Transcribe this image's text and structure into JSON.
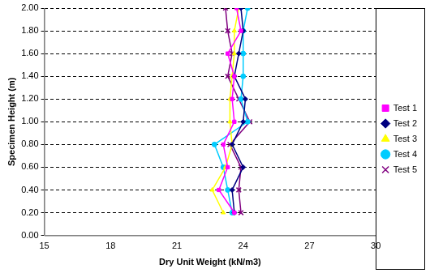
{
  "chart_data": {
    "type": "scatter",
    "line_style": "solid",
    "x_label": "Dry Unit Weight (kN/m3)",
    "y_label": "Specimen Height (m)",
    "xlim": [
      15,
      30
    ],
    "xticks": [
      15,
      18,
      21,
      24,
      27,
      30
    ],
    "ylim": [
      0,
      2
    ],
    "yticks": [
      {
        "value": 0,
        "label": "0.00"
      },
      {
        "value": 0.2,
        "label": "0.20"
      },
      {
        "value": 0.4,
        "label": "0.40"
      },
      {
        "value": 0.6,
        "label": "0.60"
      },
      {
        "value": 0.8,
        "label": "0.80"
      },
      {
        "value": 1.0,
        "label": "1.00"
      },
      {
        "value": 1.2,
        "label": "1.20"
      },
      {
        "value": 1.4,
        "label": "1.40"
      },
      {
        "value": 1.6,
        "label": "1.60"
      },
      {
        "value": 1.8,
        "label": "1.80"
      },
      {
        "value": 2.0,
        "label": "2.00"
      }
    ],
    "grid": "y",
    "legend": "right",
    "series": [
      {
        "name": "Test 1",
        "color": "#ff00ff",
        "marker": "square",
        "x": [
          23.6,
          22.9,
          23.3,
          23.1,
          23.6,
          23.5,
          23.6,
          23.3,
          23.9,
          23.7
        ],
        "y": [
          0.2,
          0.4,
          0.6,
          0.8,
          1.0,
          1.2,
          1.4,
          1.6,
          1.8,
          2.0
        ]
      },
      {
        "name": "Test 2",
        "color": "#000080",
        "marker": "diamond",
        "x": [
          23.6,
          23.5,
          24.0,
          23.5,
          24.0,
          24.1,
          23.6,
          23.8,
          24.0,
          23.9
        ],
        "y": [
          0.2,
          0.4,
          0.6,
          0.8,
          1.0,
          1.2,
          1.4,
          1.6,
          1.8,
          2.0
        ]
      },
      {
        "name": "Test 3",
        "color": "#ffff00",
        "marker": "triangle",
        "x": [
          23.1,
          22.6,
          23.2,
          23.5,
          23.4,
          23.4,
          23.5,
          23.6,
          23.6,
          23.8
        ],
        "y": [
          0.2,
          0.4,
          0.6,
          0.8,
          1.0,
          1.2,
          1.4,
          1.6,
          1.8,
          2.0
        ]
      },
      {
        "name": "Test 4",
        "color": "#00ccff",
        "marker": "circle",
        "x": [
          23.5,
          23.3,
          23.1,
          22.7,
          24.2,
          23.9,
          24.0,
          24.0,
          24.0,
          24.2
        ],
        "y": [
          0.2,
          0.4,
          0.6,
          0.8,
          1.0,
          1.2,
          1.4,
          1.6,
          1.8,
          2.0
        ]
      },
      {
        "name": "Test 5",
        "color": "#800080",
        "marker": "x",
        "x": [
          23.9,
          23.8,
          23.9,
          23.4,
          24.3,
          23.8,
          23.3,
          23.5,
          23.3,
          23.2
        ],
        "y": [
          0.2,
          0.4,
          0.6,
          0.8,
          1.0,
          1.2,
          1.4,
          1.6,
          1.8,
          2.0
        ]
      }
    ]
  }
}
